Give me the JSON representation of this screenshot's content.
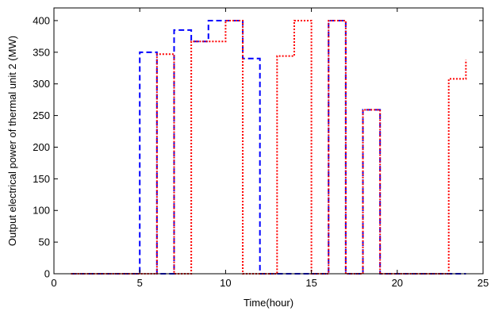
{
  "chart_data": {
    "type": "line",
    "xlabel": "Time(hour)",
    "ylabel": "Output electrical power of thermal unit 2 (MW)",
    "xlim": [
      0,
      25
    ],
    "ylim": [
      0,
      420
    ],
    "xticks": [
      0,
      5,
      10,
      15,
      20,
      25
    ],
    "yticks": [
      0,
      50,
      100,
      150,
      200,
      250,
      300,
      350,
      400
    ],
    "grid": false,
    "legend": "none",
    "series": [
      {
        "style": "dashed",
        "color": "#0000ff",
        "x": [
          1,
          2,
          3,
          4,
          5,
          5,
          6,
          6,
          7,
          7,
          8,
          8,
          9,
          9,
          10,
          10,
          11,
          11,
          12,
          12,
          13,
          14,
          15,
          16,
          16,
          17,
          17,
          18,
          18,
          19,
          19,
          20,
          21,
          22,
          23,
          24
        ],
        "y": [
          0,
          0,
          0,
          0,
          0,
          350,
          350,
          0,
          0,
          385,
          385,
          367,
          367,
          400,
          400,
          400,
          400,
          340,
          340,
          0,
          0,
          0,
          0,
          0,
          400,
          400,
          0,
          0,
          259,
          259,
          0,
          0,
          0,
          0,
          0,
          0
        ]
      },
      {
        "style": "dotted",
        "color": "#ff0000",
        "x": [
          1,
          2,
          3,
          4,
          5,
          6,
          6,
          7,
          7,
          8,
          8,
          9,
          10,
          10,
          11,
          11,
          12,
          13,
          13,
          14,
          14,
          15,
          15,
          16,
          16,
          17,
          17,
          18,
          18,
          19,
          19,
          20,
          21,
          22,
          23,
          23,
          24,
          24
        ],
        "y": [
          0,
          0,
          0,
          0,
          0,
          0,
          347,
          347,
          0,
          0,
          367,
          367,
          367,
          400,
          400,
          0,
          0,
          0,
          344,
          344,
          400,
          400,
          0,
          0,
          400,
          400,
          0,
          0,
          259,
          259,
          0,
          0,
          0,
          0,
          0,
          308,
          308,
          338
        ]
      }
    ]
  }
}
